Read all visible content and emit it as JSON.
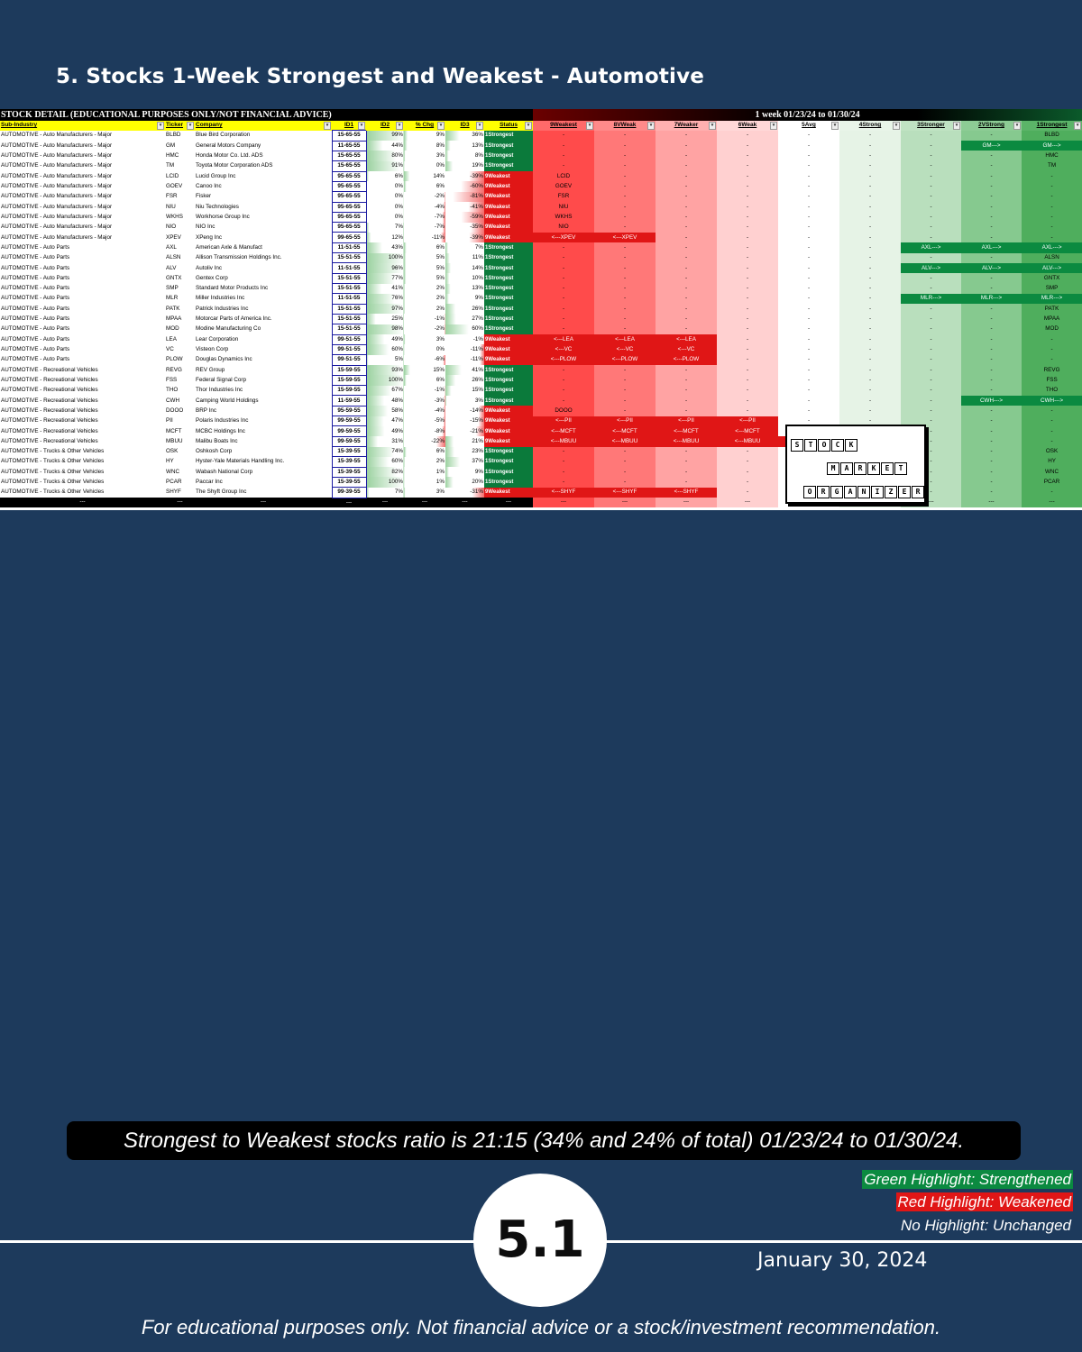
{
  "title": "5. Stocks 1-Week Strongest and Weakest - Automotive",
  "sheet": {
    "left_title": "STOCK DETAIL (EDUCATIONAL PURPOSES ONLY/NOT FINANCIAL ADVICE)",
    "right_title": "1 week 01/23/24 to 01/30/24",
    "headers": [
      "Sub-Industry",
      "Ticker",
      "Company",
      "ID1",
      "ID2",
      "% Chg",
      "ID3",
      "Status",
      "9Weakest",
      "8VWeak",
      "7Weaker",
      "6Weak",
      "5Avg",
      "4Strong",
      "3Stronger",
      "2VStrong",
      "1Strongest"
    ],
    "rows": [
      {
        "sub": "AUTOMOTIVE - Auto Manufacturers - Major",
        "t": "BLBD",
        "co": "Blue Bird Corporation",
        "id1": "15-65-55",
        "id2": "99%",
        "chg": "9%",
        "id3": "36%",
        "st": "1Strongest",
        "cols": [
          "-",
          "-",
          "-",
          "-",
          "-",
          "-",
          "-",
          "-",
          "BLBD"
        ],
        "g": []
      },
      {
        "sub": "AUTOMOTIVE - Auto Manufacturers - Major",
        "t": "GM",
        "co": "General Motors Company",
        "id1": "11-65-55",
        "id2": "44%",
        "chg": "8%",
        "id3": "13%",
        "st": "1Strongest",
        "cols": [
          "-",
          "-",
          "-",
          "-",
          "-",
          "-",
          "-",
          "GM--->",
          "GM--->"
        ],
        "g": [
          7,
          8
        ]
      },
      {
        "sub": "AUTOMOTIVE - Auto Manufacturers - Major",
        "t": "HMC",
        "co": "Honda Motor Co. Ltd. ADS",
        "id1": "15-65-55",
        "id2": "80%",
        "chg": "3%",
        "id3": "8%",
        "st": "1Strongest",
        "cols": [
          "-",
          "-",
          "-",
          "-",
          "-",
          "-",
          "-",
          "-",
          "HMC"
        ],
        "g": []
      },
      {
        "sub": "AUTOMOTIVE - Auto Manufacturers - Major",
        "t": "TM",
        "co": "Toyota Motor Corporation ADS",
        "id1": "15-65-55",
        "id2": "91%",
        "chg": "0%",
        "id3": "19%",
        "st": "1Strongest",
        "cols": [
          "-",
          "-",
          "-",
          "-",
          "-",
          "-",
          "-",
          "-",
          "TM"
        ],
        "g": []
      },
      {
        "sub": "AUTOMOTIVE - Auto Manufacturers - Major",
        "t": "LCID",
        "co": "Lucid Group Inc",
        "id1": "95-65-55",
        "id2": "6%",
        "chg": "14%",
        "id3": "-39%",
        "st": "9Weakest",
        "cols": [
          "LCID",
          "-",
          "-",
          "-",
          "-",
          "-",
          "-",
          "-",
          "-"
        ],
        "g": []
      },
      {
        "sub": "AUTOMOTIVE - Auto Manufacturers - Major",
        "t": "GOEV",
        "co": "Canoo Inc",
        "id1": "95-65-55",
        "id2": "0%",
        "chg": "6%",
        "id3": "-60%",
        "st": "9Weakest",
        "cols": [
          "GOEV",
          "-",
          "-",
          "-",
          "-",
          "-",
          "-",
          "-",
          "-"
        ],
        "g": []
      },
      {
        "sub": "AUTOMOTIVE - Auto Manufacturers - Major",
        "t": "FSR",
        "co": "Fisker",
        "id1": "95-65-55",
        "id2": "0%",
        "chg": "-2%",
        "id3": "-81%",
        "st": "9Weakest",
        "cols": [
          "FSR",
          "-",
          "-",
          "-",
          "-",
          "-",
          "-",
          "-",
          "-"
        ],
        "g": []
      },
      {
        "sub": "AUTOMOTIVE - Auto Manufacturers - Major",
        "t": "NIU",
        "co": "Niu Technologies",
        "id1": "95-65-55",
        "id2": "0%",
        "chg": "-4%",
        "id3": "-41%",
        "st": "9Weakest",
        "cols": [
          "NIU",
          "-",
          "-",
          "-",
          "-",
          "-",
          "-",
          "-",
          "-"
        ],
        "g": []
      },
      {
        "sub": "AUTOMOTIVE - Auto Manufacturers - Major",
        "t": "WKHS",
        "co": "Workhorse Group Inc",
        "id1": "95-65-55",
        "id2": "0%",
        "chg": "-7%",
        "id3": "-59%",
        "st": "9Weakest",
        "cols": [
          "WKHS",
          "-",
          "-",
          "-",
          "-",
          "-",
          "-",
          "-",
          "-"
        ],
        "g": []
      },
      {
        "sub": "AUTOMOTIVE - Auto Manufacturers - Major",
        "t": "NIO",
        "co": "NIO Inc",
        "id1": "95-65-55",
        "id2": "7%",
        "chg": "-7%",
        "id3": "-35%",
        "st": "9Weakest",
        "cols": [
          "NIO",
          "-",
          "-",
          "-",
          "-",
          "-",
          "-",
          "-",
          "-"
        ],
        "g": []
      },
      {
        "sub": "AUTOMOTIVE - Auto Manufacturers - Major",
        "t": "XPEV",
        "co": "XPeng Inc",
        "id1": "99-65-55",
        "id2": "12%",
        "chg": "-11%",
        "id3": "-39%",
        "st": "9Weakest",
        "cols": [
          "<---XPEV",
          "<---XPEV",
          "-",
          "-",
          "-",
          "-",
          "-",
          "-",
          "-"
        ],
        "r": [
          0,
          1
        ]
      },
      {
        "sub": "AUTOMOTIVE - Auto Parts",
        "t": "AXL",
        "co": "American Axle & Manufact",
        "id1": "11-51-55",
        "id2": "43%",
        "chg": "6%",
        "id3": "7%",
        "st": "1Strongest",
        "cols": [
          "-",
          "-",
          "-",
          "-",
          "-",
          "-",
          "AXL--->",
          "AXL--->",
          "AXL--->"
        ],
        "g": [
          6,
          7,
          8
        ]
      },
      {
        "sub": "AUTOMOTIVE - Auto Parts",
        "t": "ALSN",
        "co": "Allison Transmission Holdings Inc.",
        "id1": "15-51-55",
        "id2": "100%",
        "chg": "5%",
        "id3": "11%",
        "st": "1Strongest",
        "cols": [
          "-",
          "-",
          "-",
          "-",
          "-",
          "-",
          "-",
          "-",
          "ALSN"
        ],
        "g": []
      },
      {
        "sub": "AUTOMOTIVE - Auto Parts",
        "t": "ALV",
        "co": "Autoliv Inc",
        "id1": "11-51-55",
        "id2": "96%",
        "chg": "5%",
        "id3": "14%",
        "st": "1Strongest",
        "cols": [
          "-",
          "-",
          "-",
          "-",
          "-",
          "-",
          "ALV--->",
          "ALV--->",
          "ALV--->"
        ],
        "g": [
          6,
          7,
          8
        ]
      },
      {
        "sub": "AUTOMOTIVE - Auto Parts",
        "t": "GNTX",
        "co": "Gentex Corp",
        "id1": "15-51-55",
        "id2": "77%",
        "chg": "5%",
        "id3": "10%",
        "st": "1Strongest",
        "cols": [
          "-",
          "-",
          "-",
          "-",
          "-",
          "-",
          "-",
          "-",
          "GNTX"
        ],
        "g": []
      },
      {
        "sub": "AUTOMOTIVE - Auto Parts",
        "t": "SMP",
        "co": "Standard Motor Products Inc",
        "id1": "15-51-55",
        "id2": "41%",
        "chg": "2%",
        "id3": "13%",
        "st": "1Strongest",
        "cols": [
          "-",
          "-",
          "-",
          "-",
          "-",
          "-",
          "-",
          "-",
          "SMP"
        ],
        "g": []
      },
      {
        "sub": "AUTOMOTIVE - Auto Parts",
        "t": "MLR",
        "co": "Miller Industries Inc",
        "id1": "11-51-55",
        "id2": "76%",
        "chg": "2%",
        "id3": "9%",
        "st": "1Strongest",
        "cols": [
          "-",
          "-",
          "-",
          "-",
          "-",
          "-",
          "MLR--->",
          "MLR--->",
          "MLR--->"
        ],
        "g": [
          6,
          7,
          8
        ]
      },
      {
        "sub": "AUTOMOTIVE - Auto Parts",
        "t": "PATK",
        "co": "Patrick Industries Inc",
        "id1": "15-51-55",
        "id2": "97%",
        "chg": "2%",
        "id3": "26%",
        "st": "1Strongest",
        "cols": [
          "-",
          "-",
          "-",
          "-",
          "-",
          "-",
          "-",
          "-",
          "PATK"
        ],
        "g": []
      },
      {
        "sub": "AUTOMOTIVE - Auto Parts",
        "t": "MPAA",
        "co": "Motorcar Parts of America Inc.",
        "id1": "15-51-55",
        "id2": "25%",
        "chg": "-1%",
        "id3": "27%",
        "st": "1Strongest",
        "cols": [
          "-",
          "-",
          "-",
          "-",
          "-",
          "-",
          "-",
          "-",
          "MPAA"
        ],
        "g": []
      },
      {
        "sub": "AUTOMOTIVE - Auto Parts",
        "t": "MOD",
        "co": "Modine Manufacturing Co",
        "id1": "15-51-55",
        "id2": "98%",
        "chg": "-2%",
        "id3": "60%",
        "st": "1Strongest",
        "cols": [
          "-",
          "-",
          "-",
          "-",
          "-",
          "-",
          "-",
          "-",
          "MOD"
        ],
        "g": []
      },
      {
        "sub": "AUTOMOTIVE - Auto Parts",
        "t": "LEA",
        "co": "Lear Corporation",
        "id1": "99-51-55",
        "id2": "49%",
        "chg": "3%",
        "id3": "-1%",
        "st": "9Weakest",
        "cols": [
          "<---LEA",
          "<---LEA",
          "<---LEA",
          "-",
          "-",
          "-",
          "-",
          "-",
          "-"
        ],
        "r": [
          0,
          1,
          2
        ]
      },
      {
        "sub": "AUTOMOTIVE - Auto Parts",
        "t": "VC",
        "co": "Visteon Corp",
        "id1": "99-51-55",
        "id2": "60%",
        "chg": "0%",
        "id3": "-11%",
        "st": "9Weakest",
        "cols": [
          "<---VC",
          "<---VC",
          "<---VC",
          "-",
          "-",
          "-",
          "-",
          "-",
          "-"
        ],
        "r": [
          0,
          1,
          2
        ]
      },
      {
        "sub": "AUTOMOTIVE - Auto Parts",
        "t": "PLOW",
        "co": "Douglas Dynamics Inc",
        "id1": "99-51-55",
        "id2": "5%",
        "chg": "-6%",
        "id3": "-11%",
        "st": "9Weakest",
        "cols": [
          "<---PLOW",
          "<---PLOW",
          "<---PLOW",
          "-",
          "-",
          "-",
          "-",
          "-",
          "-"
        ],
        "r": [
          0,
          1,
          2
        ]
      },
      {
        "sub": "AUTOMOTIVE - Recreational Vehicles",
        "t": "REVG",
        "co": "REV Group",
        "id1": "15-59-55",
        "id2": "93%",
        "chg": "15%",
        "id3": "41%",
        "st": "1Strongest",
        "cols": [
          "-",
          "-",
          "-",
          "-",
          "-",
          "-",
          "-",
          "-",
          "REVG"
        ],
        "g": []
      },
      {
        "sub": "AUTOMOTIVE - Recreational Vehicles",
        "t": "FSS",
        "co": "Federal Signal Corp",
        "id1": "15-59-55",
        "id2": "100%",
        "chg": "6%",
        "id3": "26%",
        "st": "1Strongest",
        "cols": [
          "-",
          "-",
          "-",
          "-",
          "-",
          "-",
          "-",
          "-",
          "FSS"
        ],
        "g": []
      },
      {
        "sub": "AUTOMOTIVE - Recreational Vehicles",
        "t": "THO",
        "co": "Thor Industries Inc",
        "id1": "15-59-55",
        "id2": "67%",
        "chg": "-1%",
        "id3": "15%",
        "st": "1Strongest",
        "cols": [
          "-",
          "-",
          "-",
          "-",
          "-",
          "-",
          "-",
          "-",
          "THO"
        ],
        "g": []
      },
      {
        "sub": "AUTOMOTIVE - Recreational Vehicles",
        "t": "CWH",
        "co": "Camping World Holdings",
        "id1": "11-59-55",
        "id2": "48%",
        "chg": "-3%",
        "id3": "3%",
        "st": "1Strongest",
        "cols": [
          "-",
          "-",
          "-",
          "-",
          "-",
          "-",
          "-",
          "CWH--->",
          "CWH--->"
        ],
        "g": [
          7,
          8
        ]
      },
      {
        "sub": "AUTOMOTIVE - Recreational Vehicles",
        "t": "DOOO",
        "co": "BRP Inc",
        "id1": "95-59-55",
        "id2": "58%",
        "chg": "-4%",
        "id3": "-14%",
        "st": "9Weakest",
        "cols": [
          "DOOO",
          "-",
          "-",
          "-",
          "-",
          "-",
          "-",
          "-",
          "-"
        ],
        "g": []
      },
      {
        "sub": "AUTOMOTIVE - Recreational Vehicles",
        "t": "PII",
        "co": "Polaris Industries Inc",
        "id1": "99-59-55",
        "id2": "47%",
        "chg": "-5%",
        "id3": "-15%",
        "st": "9Weakest",
        "cols": [
          "<---PII",
          "<---PII",
          "<---PII",
          "<---PII",
          "-",
          "-",
          "-",
          "-",
          "-"
        ],
        "r": [
          0,
          1,
          2,
          3
        ]
      },
      {
        "sub": "AUTOMOTIVE - Recreational Vehicles",
        "t": "MCFT",
        "co": "MCBC Holdings Inc",
        "id1": "99-59-55",
        "id2": "49%",
        "chg": "-8%",
        "id3": "-21%",
        "st": "9Weakest",
        "cols": [
          "<---MCFT",
          "<---MCFT",
          "<---MCFT",
          "<---MCFT",
          "-",
          "-",
          "-",
          "-",
          "-"
        ],
        "r": [
          0,
          1,
          2,
          3
        ]
      },
      {
        "sub": "AUTOMOTIVE - Recreational Vehicles",
        "t": "MBUU",
        "co": "Malibu Boats Inc",
        "id1": "99-59-55",
        "id2": "31%",
        "chg": "-22%",
        "id3": "21%",
        "st": "9Weakest",
        "cols": [
          "<---MBUU",
          "<---MBUU",
          "<---MBUU",
          "<---MBUU",
          "<---MBUU",
          "<---MBUU",
          "-",
          "-",
          "-"
        ],
        "r": [
          0,
          1,
          2,
          3,
          4,
          5
        ]
      },
      {
        "sub": "AUTOMOTIVE - Trucks & Other Vehicles",
        "t": "OSK",
        "co": "Oshkosh Corp",
        "id1": "15-39-55",
        "id2": "74%",
        "chg": "6%",
        "id3": "23%",
        "st": "1Strongest",
        "cols": [
          "-",
          "-",
          "-",
          "-",
          "-",
          "-",
          "-",
          "-",
          "OSK"
        ],
        "g": []
      },
      {
        "sub": "AUTOMOTIVE - Trucks & Other Vehicles",
        "t": "HY",
        "co": "Hyster-Yale Materials Handling Inc.",
        "id1": "15-39-55",
        "id2": "60%",
        "chg": "2%",
        "id3": "37%",
        "st": "1Strongest",
        "cols": [
          "-",
          "-",
          "-",
          "-",
          "-",
          "-",
          "-",
          "-",
          "HY"
        ],
        "g": []
      },
      {
        "sub": "AUTOMOTIVE - Trucks & Other Vehicles",
        "t": "WNC",
        "co": "Wabash National Corp",
        "id1": "15-39-55",
        "id2": "82%",
        "chg": "1%",
        "id3": "9%",
        "st": "1Strongest",
        "cols": [
          "-",
          "-",
          "-",
          "-",
          "-",
          "-",
          "-",
          "-",
          "WNC"
        ],
        "g": []
      },
      {
        "sub": "AUTOMOTIVE - Trucks & Other Vehicles",
        "t": "PCAR",
        "co": "Paccar Inc",
        "id1": "15-39-55",
        "id2": "100%",
        "chg": "1%",
        "id3": "20%",
        "st": "1Strongest",
        "cols": [
          "-",
          "-",
          "-",
          "-",
          "-",
          "-",
          "-",
          "-",
          "PCAR"
        ],
        "g": []
      },
      {
        "sub": "AUTOMOTIVE - Trucks & Other Vehicles",
        "t": "SHYF",
        "co": "The Shyft Group Inc",
        "id1": "99-39-55",
        "id2": "7%",
        "chg": "3%",
        "id3": "-31%",
        "st": "9Weakest",
        "cols": [
          "<---SHYF",
          "<---SHYF",
          "<---SHYF",
          "-",
          "-",
          "-",
          "-",
          "-",
          "-"
        ],
        "r": [
          0,
          1,
          2
        ]
      }
    ],
    "footer_mark": "---"
  },
  "watermark": {
    "word1": "STOCK",
    "word2": "MARKET",
    "word3": "ORGANIZER"
  },
  "ratio_text": "Strongest to Weakest stocks ratio is 21:15 (34% and 24% of total) 01/23/24 to 01/30/24.",
  "legend": {
    "green": "Green Highlight: Strengthened",
    "red": "Red Highlight: Weakened",
    "none": "No Highlight: Unchanged",
    "green_color": "#0b8a40",
    "red_color": "#e01616"
  },
  "section_number": "5.1",
  "date": "January 30, 2024",
  "disclaimer": "For educational purposes only. Not financial advice or a stock/investment recommendation."
}
